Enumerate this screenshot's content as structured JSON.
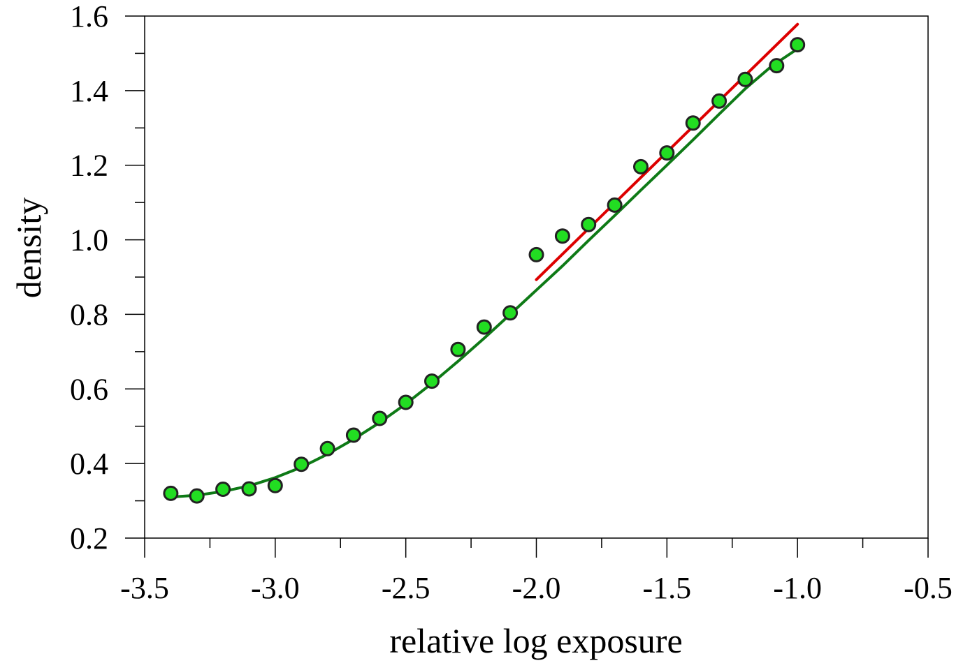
{
  "chart_data": {
    "type": "scatter",
    "title": "",
    "xlabel": "relative log exposure",
    "ylabel": "density",
    "xlim": [
      -3.5,
      -0.5
    ],
    "ylim": [
      0.2,
      1.6
    ],
    "x_ticks": [
      "-3.5",
      "-3.0",
      "-2.5",
      "-2.0",
      "-1.5",
      "-1.0",
      "-0.5"
    ],
    "x_tick_values": [
      -3.5,
      -3.0,
      -2.5,
      -2.0,
      -1.5,
      -1.0,
      -0.5
    ],
    "y_ticks": [
      "0.2",
      "0.4",
      "0.6",
      "0.8",
      "1.0",
      "1.2",
      "1.4",
      "1.6"
    ],
    "y_tick_values": [
      0.2,
      0.4,
      0.6,
      0.8,
      1.0,
      1.2,
      1.4,
      1.6
    ],
    "x_minor_step": 0.25,
    "y_minor_step": 0.1,
    "grid": false,
    "series": [
      {
        "kind": "points",
        "color": "#22dd22",
        "edge_color": "#222222",
        "x": [
          -3.4,
          -3.3,
          -3.2,
          -3.1,
          -3.0,
          -2.9,
          -2.8,
          -2.7,
          -2.6,
          -2.5,
          -2.4,
          -2.3,
          -2.2,
          -2.1,
          -2.0,
          -1.9,
          -1.8,
          -1.7,
          -1.6,
          -1.5,
          -1.4,
          -1.3,
          -1.2,
          -1.08,
          -1.0
        ],
        "y": [
          0.32,
          0.313,
          0.331,
          0.332,
          0.341,
          0.398,
          0.44,
          0.476,
          0.521,
          0.564,
          0.621,
          0.706,
          0.766,
          0.804,
          0.96,
          1.01,
          1.041,
          1.093,
          1.196,
          1.233,
          1.313,
          1.372,
          1.43,
          1.467,
          1.523
        ]
      },
      {
        "kind": "line",
        "color": "#dd0000",
        "x": [
          -2.0,
          -1.0
        ],
        "y": [
          0.893,
          1.578
        ]
      },
      {
        "kind": "line",
        "color": "#0e7a16",
        "x": [
          -3.4,
          -3.3,
          -3.2,
          -3.1,
          -3.0,
          -2.9,
          -2.8,
          -2.7,
          -2.6,
          -2.5,
          -2.4,
          -2.3,
          -2.2,
          -2.1,
          -2.0,
          -1.9,
          -1.8,
          -1.7,
          -1.6,
          -1.5,
          -1.4,
          -1.3,
          -1.2,
          -1.1,
          -1.0
        ],
        "y": [
          0.31,
          0.315,
          0.325,
          0.34,
          0.362,
          0.39,
          0.425,
          0.465,
          0.51,
          0.56,
          0.615,
          0.674,
          0.736,
          0.8,
          0.865,
          0.93,
          0.998,
          1.065,
          1.133,
          1.2,
          1.268,
          1.337,
          1.405,
          1.465,
          1.512
        ]
      }
    ]
  }
}
